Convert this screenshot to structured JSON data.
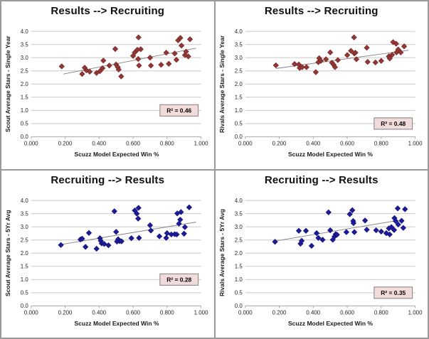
{
  "frame": {
    "border_color": "#9a9a9a",
    "background": "#ffffff"
  },
  "chart_data": [
    {
      "type": "scatter",
      "position": "top-left",
      "title": "Results --> Recruiting",
      "xlabel": "Scuzz Model Expected Win %",
      "ylabel": "Scout Average Stars - Single Year",
      "xlim": [
        0.0,
        1.0
      ],
      "ylim": [
        0.0,
        4.0
      ],
      "grid": true,
      "x_tick_values": [
        0.0,
        0.2,
        0.4,
        0.6,
        0.8,
        1.0
      ],
      "x_tick_labels": [
        "0.000",
        "0.200",
        "0.400",
        "0.600",
        "0.800",
        "1.000"
      ],
      "y_tick_values": [
        0.0,
        0.5,
        1.0,
        1.5,
        2.0,
        2.5,
        3.0,
        3.5,
        4.0
      ],
      "y_tick_labels": [
        "0.0",
        "0.5",
        "1.0",
        "1.5",
        "2.0",
        "2.5",
        "3.0",
        "3.5",
        "4.0"
      ],
      "marker_shape": "diamond",
      "marker_color": "#943634",
      "marker_edge_color": "#6e2422",
      "trendline": {
        "x": [
          0.19,
          0.97
        ],
        "y": [
          2.38,
          3.36
        ],
        "color": "#808080"
      },
      "r_squared": {
        "label": "R² = 0.46",
        "value": 0.46,
        "anchor_y": 1.0,
        "box_fill": "#f2dcdb",
        "box_edge": "#7f7f7f"
      },
      "points": [
        [
          0.18,
          2.67
        ],
        [
          0.3,
          2.38
        ],
        [
          0.315,
          2.62
        ],
        [
          0.325,
          2.52
        ],
        [
          0.345,
          2.47
        ],
        [
          0.385,
          2.42
        ],
        [
          0.405,
          2.49
        ],
        [
          0.42,
          2.6
        ],
        [
          0.425,
          2.89
        ],
        [
          0.46,
          2.7
        ],
        [
          0.495,
          3.33
        ],
        [
          0.5,
          2.74
        ],
        [
          0.51,
          2.64
        ],
        [
          0.515,
          2.55
        ],
        [
          0.53,
          2.29
        ],
        [
          0.6,
          3.07
        ],
        [
          0.61,
          3.2
        ],
        [
          0.625,
          3.3
        ],
        [
          0.632,
          3.77
        ],
        [
          0.63,
          2.95
        ],
        [
          0.635,
          2.7
        ],
        [
          0.645,
          3.32
        ],
        [
          0.7,
          3.0
        ],
        [
          0.705,
          2.7
        ],
        [
          0.765,
          2.73
        ],
        [
          0.795,
          3.19
        ],
        [
          0.81,
          2.77
        ],
        [
          0.845,
          3.16
        ],
        [
          0.855,
          2.92
        ],
        [
          0.865,
          3.66
        ],
        [
          0.878,
          3.75
        ],
        [
          0.885,
          3.46
        ],
        [
          0.905,
          3.1
        ],
        [
          0.912,
          3.23
        ],
        [
          0.925,
          3.05
        ],
        [
          0.935,
          3.7
        ]
      ]
    },
    {
      "type": "scatter",
      "position": "top-right",
      "title": "Results --> Recruiting",
      "xlabel": "Scuzz Model Expected Win %",
      "ylabel": "Rivals Average Stars - Single Year",
      "xlim": [
        0.0,
        1.0
      ],
      "ylim": [
        0.0,
        4.0
      ],
      "grid": true,
      "x_tick_values": [
        0.0,
        0.2,
        0.4,
        0.6,
        0.8,
        1.0
      ],
      "x_tick_labels": [
        "0.000",
        "0.200",
        "0.400",
        "0.600",
        "0.800",
        "1.000"
      ],
      "y_tick_values": [
        0.0,
        0.5,
        1.0,
        1.5,
        2.0,
        2.5,
        3.0,
        3.5,
        4.0
      ],
      "y_tick_labels": [
        "0.0",
        "0.5",
        "1.0",
        "1.5",
        "2.0",
        "2.5",
        "3.0",
        "3.5",
        "4.0"
      ],
      "marker_shape": "diamond",
      "marker_color": "#943634",
      "marker_edge_color": "#6e2422",
      "trendline": {
        "x": [
          0.18,
          0.96
        ],
        "y": [
          2.59,
          3.28
        ],
        "color": "#808080"
      },
      "r_squared": {
        "label": "R² = 0.48",
        "value": 0.48,
        "anchor_y": 0.5,
        "box_fill": "#f2dcdb",
        "box_edge": "#7f7f7f"
      },
      "points": [
        [
          0.18,
          2.71
        ],
        [
          0.29,
          2.76
        ],
        [
          0.315,
          2.74
        ],
        [
          0.32,
          2.61
        ],
        [
          0.335,
          2.64
        ],
        [
          0.36,
          2.64
        ],
        [
          0.415,
          2.45
        ],
        [
          0.43,
          2.83
        ],
        [
          0.435,
          2.98
        ],
        [
          0.445,
          2.88
        ],
        [
          0.475,
          2.94
        ],
        [
          0.5,
          3.2
        ],
        [
          0.51,
          2.81
        ],
        [
          0.52,
          2.73
        ],
        [
          0.528,
          2.64
        ],
        [
          0.545,
          2.91
        ],
        [
          0.6,
          3.1
        ],
        [
          0.622,
          3.26
        ],
        [
          0.64,
          3.77
        ],
        [
          0.642,
          3.16
        ],
        [
          0.654,
          2.94
        ],
        [
          0.648,
          3.19
        ],
        [
          0.715,
          3.38
        ],
        [
          0.72,
          2.84
        ],
        [
          0.766,
          2.82
        ],
        [
          0.8,
          2.88
        ],
        [
          0.845,
          3.05
        ],
        [
          0.85,
          2.97
        ],
        [
          0.864,
          3.11
        ],
        [
          0.87,
          3.59
        ],
        [
          0.888,
          3.53
        ],
        [
          0.89,
          3.2
        ],
        [
          0.9,
          3.31
        ],
        [
          0.915,
          3.2
        ],
        [
          0.935,
          3.43
        ]
      ]
    },
    {
      "type": "scatter",
      "position": "bottom-left",
      "title": "Recruiting --> Results",
      "xlabel": "Scuzz Model Expected Win %",
      "ylabel": "Scout Average Stars - 5Yr Avg",
      "xlim": [
        0.0,
        1.0
      ],
      "ylim": [
        0.0,
        4.0
      ],
      "grid": true,
      "x_tick_values": [
        0.0,
        0.2,
        0.4,
        0.6,
        0.8,
        1.0
      ],
      "x_tick_labels": [
        "0.000",
        "0.200",
        "0.400",
        "0.600",
        "0.800",
        "1.000"
      ],
      "y_tick_values": [
        0.0,
        0.5,
        1.0,
        1.5,
        2.0,
        2.5,
        3.0,
        3.5,
        4.0
      ],
      "y_tick_labels": [
        "0.0",
        "0.5",
        "1.0",
        "1.5",
        "2.0",
        "2.5",
        "3.0",
        "3.5",
        "4.0"
      ],
      "marker_shape": "diamond",
      "marker_color": "#1b1b9c",
      "marker_edge_color": "#10106b",
      "trendline": {
        "x": [
          0.175,
          0.97
        ],
        "y": [
          2.33,
          3.18
        ],
        "color": "#808080"
      },
      "r_squared": {
        "label": "R² = 0.28",
        "value": 0.28,
        "anchor_y": 1.0,
        "box_fill": "#f2dcdb",
        "box_edge": "#7f7f7f"
      },
      "points": [
        [
          0.175,
          2.31
        ],
        [
          0.29,
          2.52
        ],
        [
          0.3,
          2.55
        ],
        [
          0.32,
          2.24
        ],
        [
          0.34,
          2.77
        ],
        [
          0.385,
          2.17
        ],
        [
          0.405,
          2.57
        ],
        [
          0.41,
          2.47
        ],
        [
          0.415,
          2.37
        ],
        [
          0.43,
          2.35
        ],
        [
          0.455,
          2.3
        ],
        [
          0.49,
          3.59
        ],
        [
          0.5,
          2.81
        ],
        [
          0.505,
          2.44
        ],
        [
          0.512,
          2.53
        ],
        [
          0.52,
          2.46
        ],
        [
          0.532,
          2.45
        ],
        [
          0.59,
          2.57
        ],
        [
          0.61,
          3.62
        ],
        [
          0.622,
          3.5
        ],
        [
          0.632,
          3.72
        ],
        [
          0.63,
          3.31
        ],
        [
          0.635,
          2.58
        ],
        [
          0.7,
          3.06
        ],
        [
          0.705,
          2.86
        ],
        [
          0.755,
          2.64
        ],
        [
          0.795,
          2.58
        ],
        [
          0.8,
          2.76
        ],
        [
          0.825,
          2.71
        ],
        [
          0.845,
          2.72
        ],
        [
          0.857,
          2.71
        ],
        [
          0.86,
          3.51
        ],
        [
          0.87,
          3.12
        ],
        [
          0.877,
          3.27
        ],
        [
          0.882,
          3.56
        ],
        [
          0.9,
          2.74
        ],
        [
          0.905,
          2.99
        ],
        [
          0.93,
          3.74
        ]
      ]
    },
    {
      "type": "scatter",
      "position": "bottom-right",
      "title": "Recruiting --> Results",
      "xlabel": "Scuzz Model Expected Win %",
      "ylabel": "Rivals Average Stars - 5Yr Avg",
      "xlim": [
        0.0,
        1.0
      ],
      "ylim": [
        0.0,
        4.0
      ],
      "grid": true,
      "x_tick_values": [
        0.0,
        0.2,
        0.4,
        0.6,
        0.8,
        1.0
      ],
      "x_tick_labels": [
        "0.000",
        "0.200",
        "0.400",
        "0.600",
        "0.800",
        "1.000"
      ],
      "y_tick_values": [
        0.0,
        0.5,
        1.0,
        1.5,
        2.0,
        2.5,
        3.0,
        3.5,
        4.0
      ],
      "y_tick_labels": [
        "0.0",
        "0.5",
        "1.0",
        "1.5",
        "2.0",
        "2.5",
        "3.0",
        "3.5",
        "4.0"
      ],
      "marker_shape": "diamond",
      "marker_color": "#1b1b9c",
      "marker_edge_color": "#10106b",
      "trendline": {
        "x": [
          0.175,
          0.885
        ],
        "y": [
          2.46,
          3.23
        ],
        "color": "#808080"
      },
      "r_squared": {
        "label": "R² = 0.35",
        "value": 0.35,
        "anchor_y": 0.5,
        "box_fill": "#f2dcdb",
        "box_edge": "#7f7f7f"
      },
      "points": [
        [
          0.175,
          2.43
        ],
        [
          0.315,
          2.85
        ],
        [
          0.325,
          2.36
        ],
        [
          0.332,
          2.47
        ],
        [
          0.357,
          2.85
        ],
        [
          0.39,
          2.28
        ],
        [
          0.42,
          2.76
        ],
        [
          0.43,
          2.58
        ],
        [
          0.455,
          2.51
        ],
        [
          0.49,
          3.55
        ],
        [
          0.5,
          2.87
        ],
        [
          0.515,
          2.51
        ],
        [
          0.525,
          2.63
        ],
        [
          0.532,
          2.72
        ],
        [
          0.54,
          2.7
        ],
        [
          0.595,
          2.8
        ],
        [
          0.615,
          3.48
        ],
        [
          0.63,
          3.63
        ],
        [
          0.635,
          3.22
        ],
        [
          0.637,
          3.14
        ],
        [
          0.642,
          2.8
        ],
        [
          0.705,
          3.24
        ],
        [
          0.715,
          2.89
        ],
        [
          0.77,
          2.87
        ],
        [
          0.8,
          2.82
        ],
        [
          0.83,
          2.76
        ],
        [
          0.845,
          2.94
        ],
        [
          0.85,
          2.71
        ],
        [
          0.86,
          2.99
        ],
        [
          0.878,
          3.33
        ],
        [
          0.876,
          2.88
        ],
        [
          0.885,
          3.22
        ],
        [
          0.897,
          3.7
        ],
        [
          0.9,
          3.09
        ],
        [
          0.92,
          3.23
        ],
        [
          0.93,
          2.96
        ],
        [
          0.94,
          3.67
        ]
      ]
    }
  ],
  "style_colors": {
    "gridline": "#c9c9c9",
    "axis_line": "#a6a6a6",
    "tick_label": "#262626",
    "panel_divider": "#9a9a9a"
  }
}
